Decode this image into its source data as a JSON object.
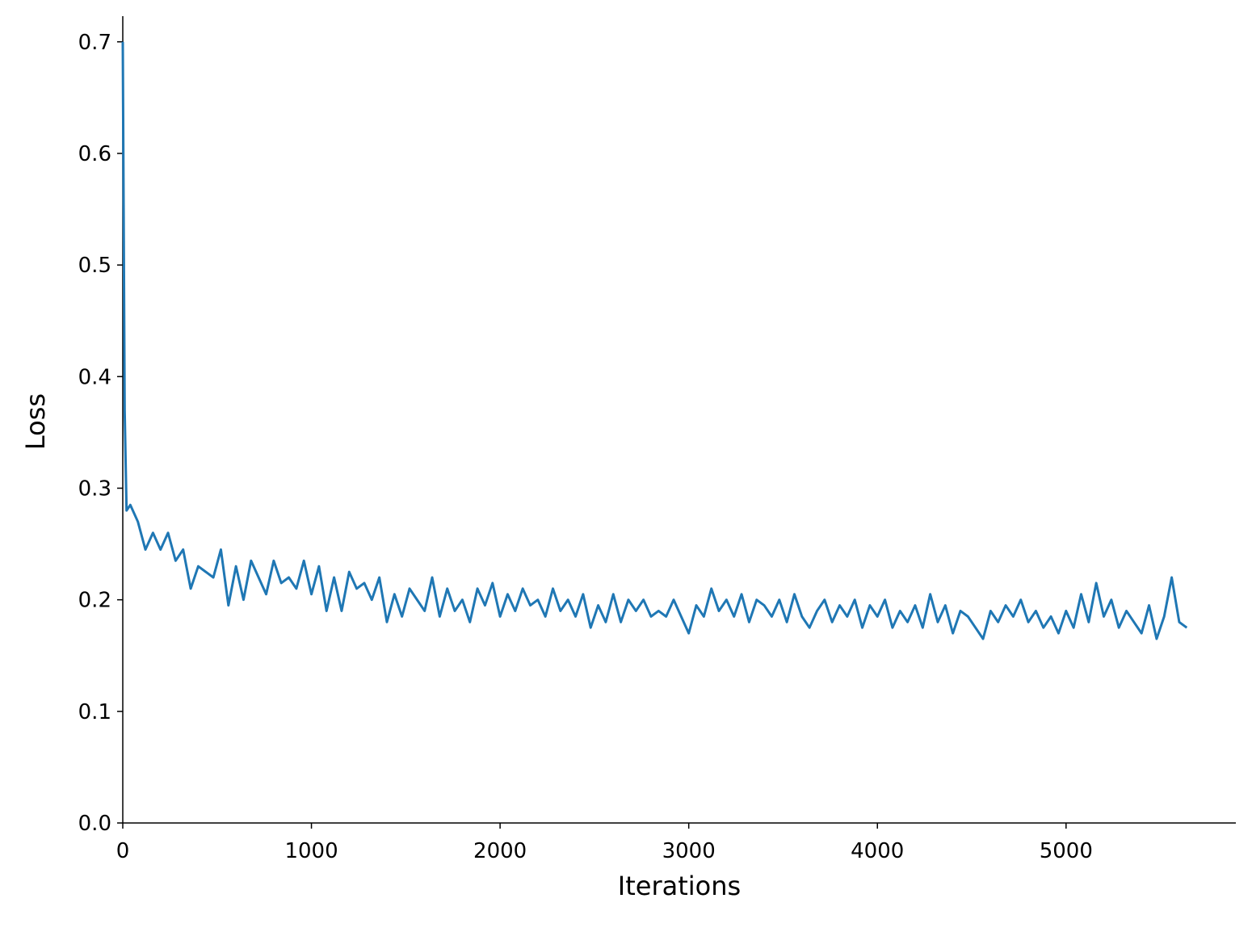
{
  "chart_data": {
    "type": "line",
    "xlabel": "Iterations",
    "ylabel": "Loss",
    "xlim": [
      0,
      5900
    ],
    "ylim": [
      0,
      0.723
    ],
    "xticks": [
      0,
      1000,
      2000,
      3000,
      4000,
      5000
    ],
    "yticks": [
      {
        "value": 0,
        "label": "0.0"
      },
      0.1,
      0.2,
      0.3,
      0.4,
      0.5,
      0.6,
      0.7
    ],
    "grid": false,
    "x": [
      0,
      10,
      20,
      40,
      80,
      120,
      160,
      200,
      240,
      280,
      320,
      360,
      400,
      440,
      480,
      520,
      560,
      600,
      640,
      680,
      720,
      760,
      800,
      840,
      880,
      920,
      960,
      1000,
      1040,
      1080,
      1120,
      1160,
      1200,
      1240,
      1280,
      1320,
      1360,
      1400,
      1440,
      1480,
      1520,
      1560,
      1600,
      1640,
      1680,
      1720,
      1760,
      1800,
      1840,
      1880,
      1920,
      1960,
      2000,
      2040,
      2080,
      2120,
      2160,
      2200,
      2240,
      2280,
      2320,
      2360,
      2400,
      2440,
      2480,
      2520,
      2560,
      2600,
      2640,
      2680,
      2720,
      2760,
      2800,
      2840,
      2880,
      2920,
      2960,
      3000,
      3040,
      3080,
      3120,
      3160,
      3200,
      3240,
      3280,
      3320,
      3360,
      3400,
      3440,
      3480,
      3520,
      3560,
      3600,
      3640,
      3680,
      3720,
      3760,
      3800,
      3840,
      3880,
      3920,
      3960,
      4000,
      4040,
      4080,
      4120,
      4160,
      4200,
      4240,
      4280,
      4320,
      4360,
      4400,
      4440,
      4480,
      4520,
      4560,
      4600,
      4640,
      4680,
      4720,
      4760,
      4800,
      4840,
      4880,
      4920,
      4960,
      5000,
      5040,
      5080,
      5120,
      5160,
      5200,
      5240,
      5280,
      5320,
      5360,
      5400,
      5440,
      5480,
      5520,
      5560,
      5600,
      5640
    ],
    "series": [
      {
        "name": "Loss",
        "color": "#1f77b4",
        "values": [
          0.7,
          0.37,
          0.28,
          0.285,
          0.27,
          0.245,
          0.26,
          0.245,
          0.26,
          0.235,
          0.245,
          0.21,
          0.23,
          0.225,
          0.22,
          0.245,
          0.195,
          0.23,
          0.2,
          0.235,
          0.22,
          0.205,
          0.235,
          0.215,
          0.22,
          0.21,
          0.235,
          0.205,
          0.23,
          0.19,
          0.22,
          0.19,
          0.225,
          0.21,
          0.215,
          0.2,
          0.22,
          0.18,
          0.205,
          0.185,
          0.21,
          0.2,
          0.19,
          0.22,
          0.185,
          0.21,
          0.19,
          0.2,
          0.18,
          0.21,
          0.195,
          0.215,
          0.185,
          0.205,
          0.19,
          0.21,
          0.195,
          0.2,
          0.185,
          0.21,
          0.19,
          0.2,
          0.185,
          0.205,
          0.175,
          0.195,
          0.18,
          0.205,
          0.18,
          0.2,
          0.19,
          0.2,
          0.185,
          0.19,
          0.185,
          0.2,
          0.185,
          0.17,
          0.195,
          0.185,
          0.21,
          0.19,
          0.2,
          0.185,
          0.205,
          0.18,
          0.2,
          0.195,
          0.185,
          0.2,
          0.18,
          0.205,
          0.185,
          0.175,
          0.19,
          0.2,
          0.18,
          0.195,
          0.185,
          0.2,
          0.175,
          0.195,
          0.185,
          0.2,
          0.175,
          0.19,
          0.18,
          0.195,
          0.175,
          0.205,
          0.18,
          0.195,
          0.17,
          0.19,
          0.185,
          0.175,
          0.165,
          0.19,
          0.18,
          0.195,
          0.185,
          0.2,
          0.18,
          0.19,
          0.175,
          0.185,
          0.17,
          0.19,
          0.175,
          0.205,
          0.18,
          0.215,
          0.185,
          0.2,
          0.175,
          0.19,
          0.18,
          0.17,
          0.195,
          0.165,
          0.185,
          0.22,
          0.18,
          0.175
        ]
      }
    ]
  }
}
